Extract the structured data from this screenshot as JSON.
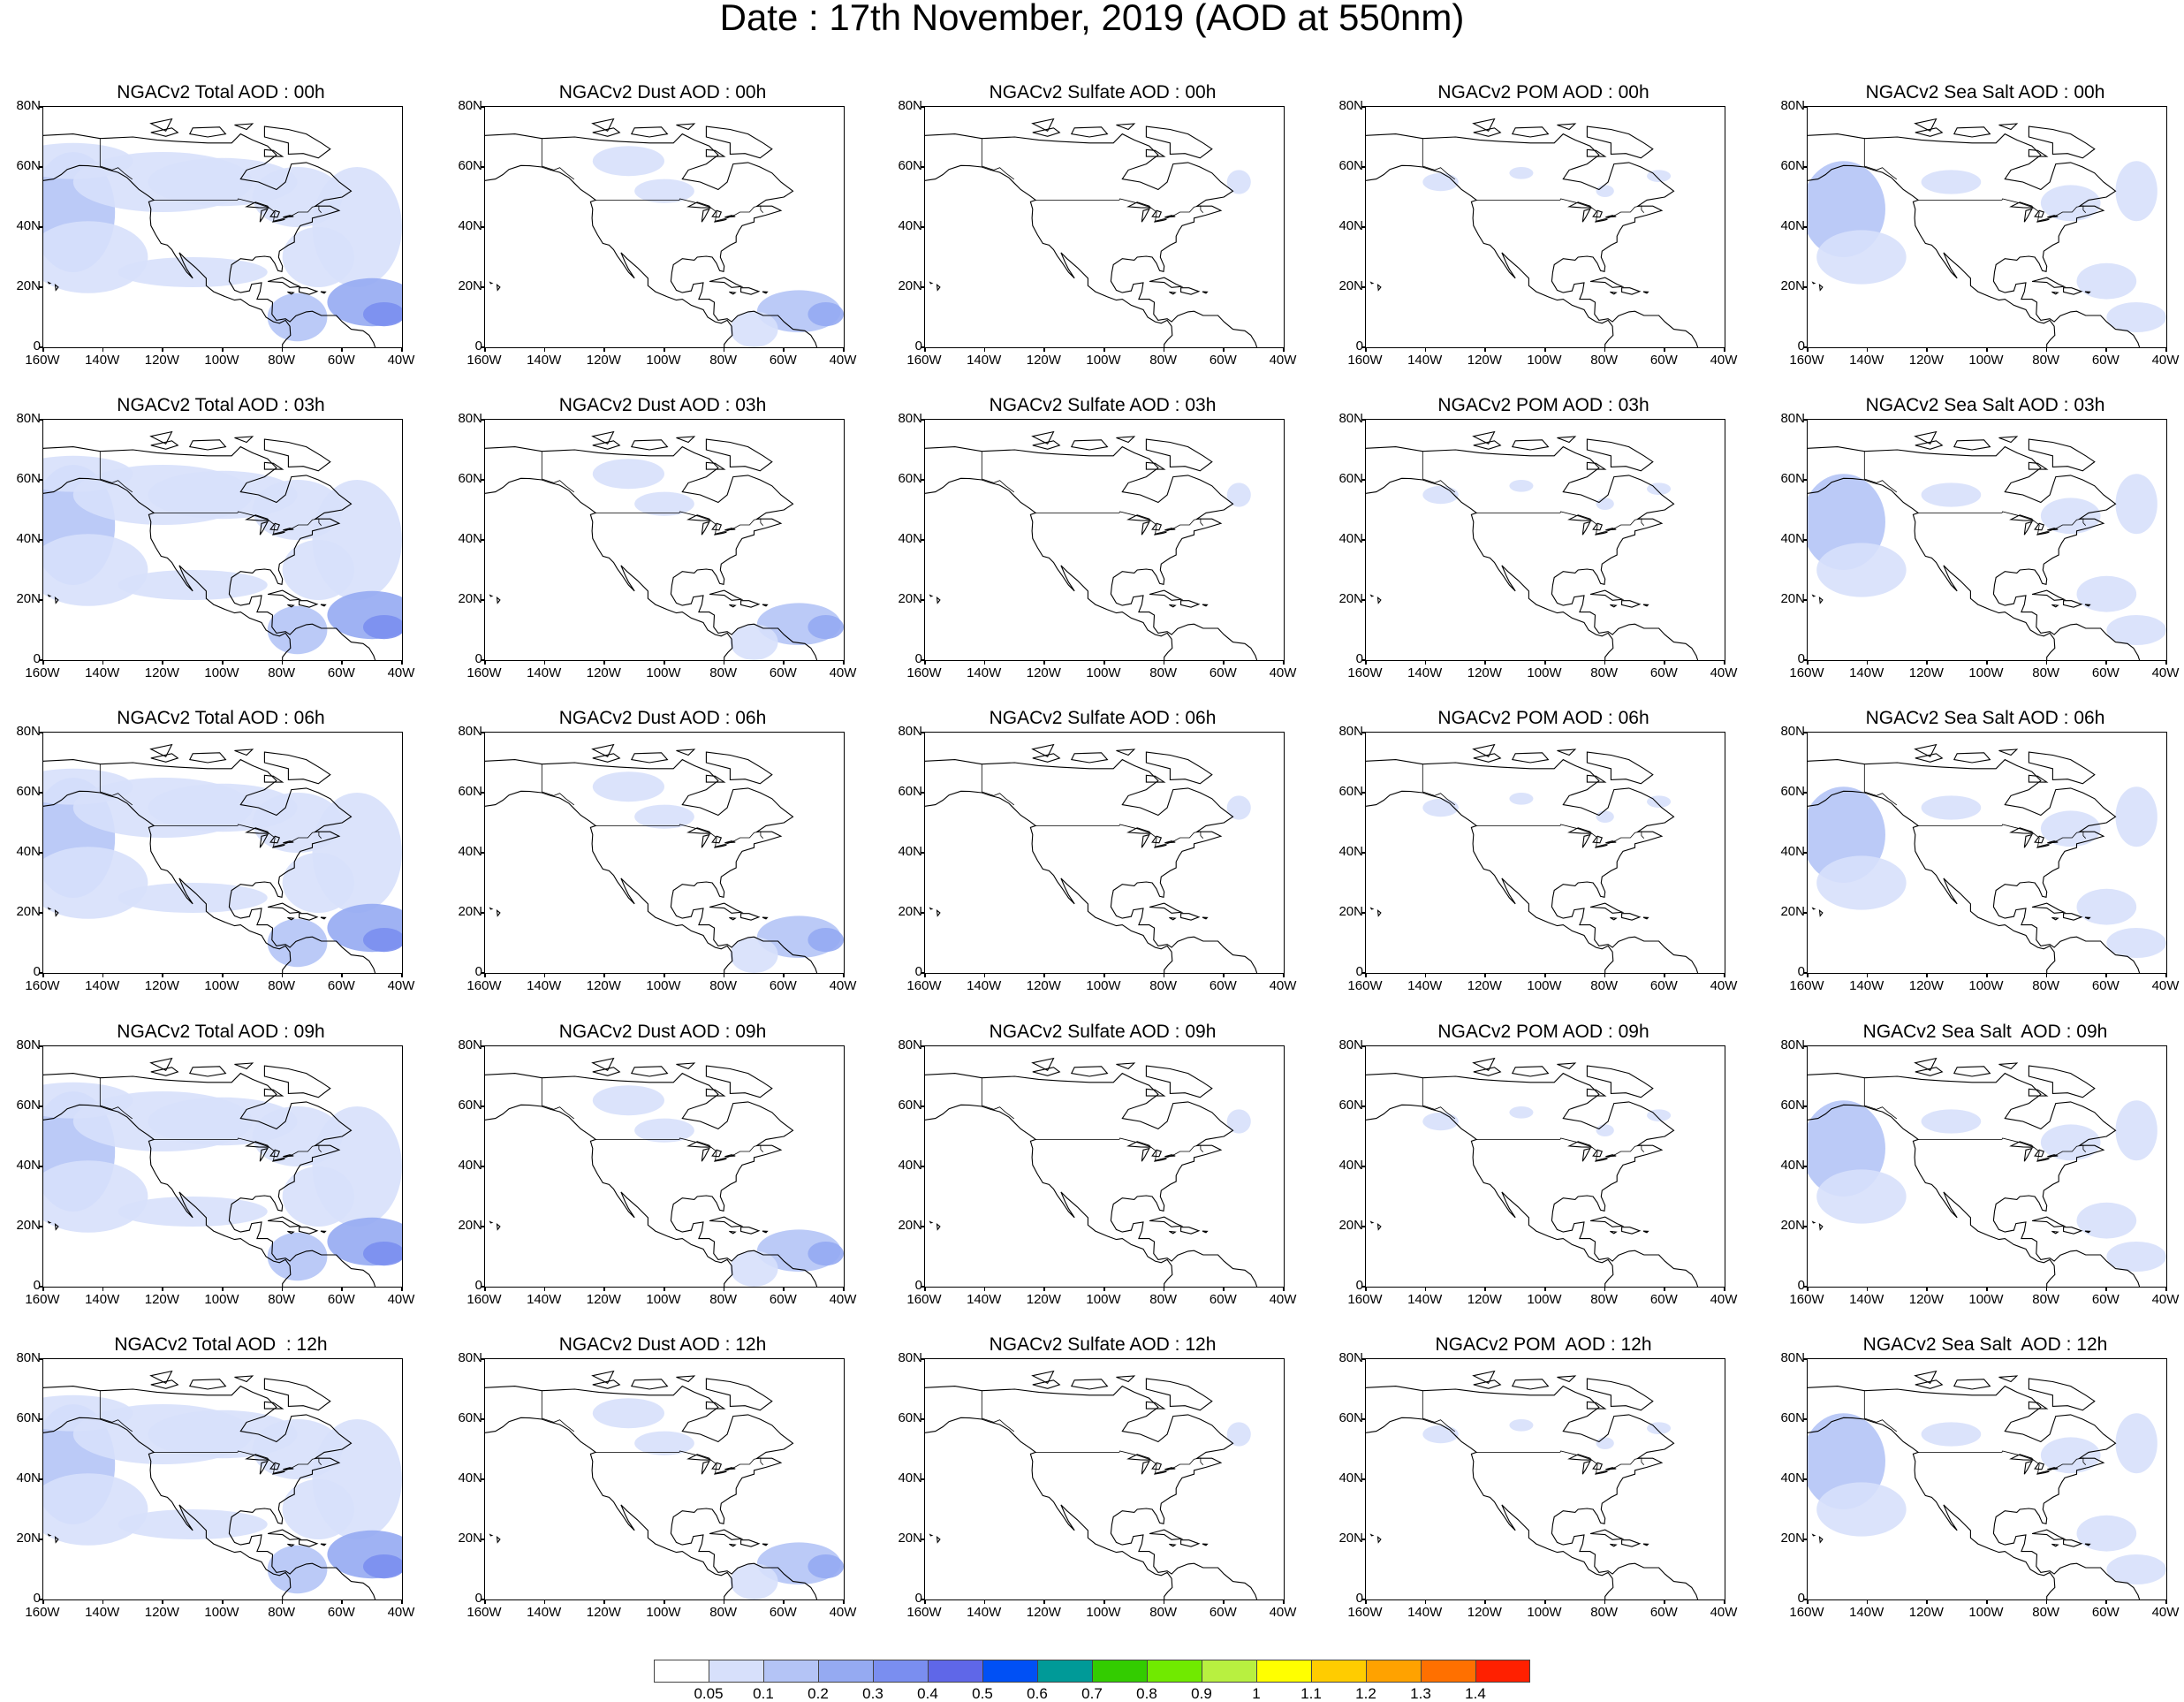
{
  "title": "Date : 17th November, 2019 (AOD at 550nm)",
  "columns": [
    "Total",
    "Dust",
    "Sulfate",
    "POM",
    "Sea Salt"
  ],
  "rows": [
    "00h",
    "03h",
    "06h",
    "09h",
    "12h"
  ],
  "panels": [
    [
      "NGACv2 Total AOD : 00h",
      "NGACv2 Dust AOD : 00h",
      "NGACv2 Sulfate AOD : 00h",
      "NGACv2 POM AOD : 00h",
      "NGACv2 Sea Salt AOD : 00h"
    ],
    [
      "NGACv2 Total AOD : 03h",
      "NGACv2 Dust AOD : 03h",
      "NGACv2 Sulfate AOD : 03h",
      "NGACv2 POM AOD : 03h",
      "NGACv2 Sea Salt AOD : 03h"
    ],
    [
      "NGACv2 Total AOD : 06h",
      "NGACv2 Dust AOD : 06h",
      "NGACv2 Sulfate AOD : 06h",
      "NGACv2 POM AOD : 06h",
      "NGACv2 Sea Salt AOD : 06h"
    ],
    [
      "NGACv2 Total AOD : 09h",
      "NGACv2 Dust AOD : 09h",
      "NGACv2 Sulfate AOD : 09h",
      "NGACv2 POM AOD : 09h",
      "NGACv2 Sea Salt  AOD : 09h"
    ],
    [
      "NGACv2 Total AOD  : 12h",
      "NGACv2 Dust AOD : 12h",
      "NGACv2 Sulfate AOD : 12h",
      "NGACv2 POM  AOD : 12h",
      "NGACv2 Sea Salt  AOD : 12h"
    ]
  ],
  "map": {
    "lat_range": [
      0,
      80
    ],
    "lon_range": [
      -160,
      -40
    ],
    "lat_labels": [
      "80N",
      "60N",
      "40N",
      "20N",
      "0"
    ],
    "lon_labels": [
      "160W",
      "140W",
      "120W",
      "100W",
      "80W",
      "60W",
      "40W"
    ],
    "coastline_color": "#000000"
  },
  "colorbar": {
    "colors": [
      "#ffffff",
      "#d7e0fb",
      "#b4c4f6",
      "#95aaf2",
      "#7a8ef0",
      "#5f67e8",
      "#0050f5",
      "#009a98",
      "#33cc00",
      "#70ea00",
      "#b8f040",
      "#ffff00",
      "#ffcc00",
      "#ffa200",
      "#ff7000",
      "#ff2000"
    ],
    "labels": [
      "0.05",
      "0.1",
      "0.2",
      "0.3",
      "0.4",
      "0.5",
      "0.6",
      "0.7",
      "0.8",
      "0.9",
      "1",
      "1.1",
      "1.2",
      "1.3",
      "1.4"
    ]
  }
}
